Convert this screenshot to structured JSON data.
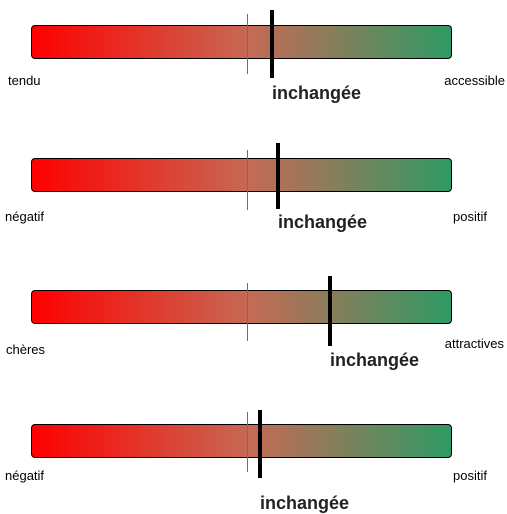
{
  "gradient": {
    "left_color": "#ff0000",
    "mid_color": "#c56a55",
    "right_color": "#2e9a64"
  },
  "gauges": [
    {
      "left_label": "tendu",
      "right_label": "accessible",
      "center_label": "inchangée"
    },
    {
      "left_label": "négatif",
      "right_label": "positif",
      "center_label": "inchangée"
    },
    {
      "left_label": "chères",
      "right_label": "attractives",
      "center_label": "inchangée"
    },
    {
      "left_label": "négatif",
      "right_label": "positif",
      "center_label": "inchangée"
    }
  ]
}
